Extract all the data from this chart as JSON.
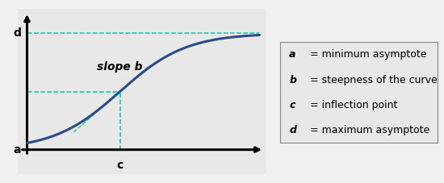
{
  "fig_width": 5.5,
  "fig_height": 2.27,
  "dpi": 100,
  "outer_bg": "#f0f0f0",
  "plot_bg_color": "#e8e8e8",
  "legend_bg_color": "#e8e8e8",
  "curve_color": "#2a4a8a",
  "dashed_color": "#00ccaa",
  "tangent_color": "#00cc88",
  "a_val": 0.1,
  "d_val": 0.87,
  "c_val": 0.4,
  "b_val": 7.0,
  "slope_b_label": "slope b",
  "label_a": "a",
  "label_c": "c",
  "label_d": "d",
  "legend_entries": [
    [
      "a",
      " = minimum asymptote"
    ],
    [
      "b",
      " = steepness of the curve"
    ],
    [
      "c",
      " = inflection point"
    ],
    [
      "d",
      " = maximum asymptote"
    ]
  ]
}
